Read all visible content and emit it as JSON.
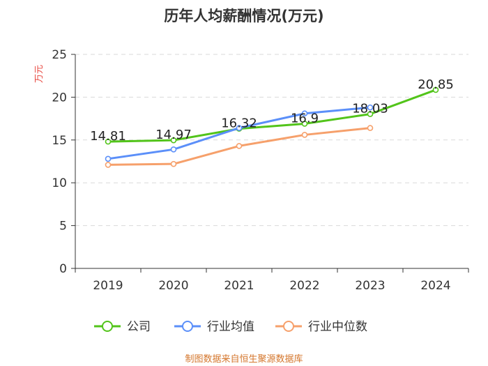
{
  "chart_data": {
    "type": "line",
    "title": "历年人均薪酬情况(万元)",
    "ylabel": "万元",
    "xlabel": "",
    "ylim": [
      0,
      25
    ],
    "yticks": [
      0,
      5,
      10,
      15,
      20,
      25
    ],
    "categories": [
      "2019",
      "2020",
      "2021",
      "2022",
      "2023",
      "2024"
    ],
    "grid": true,
    "legend_position": "bottom",
    "series": [
      {
        "name": "公司",
        "color": "#52c41a",
        "values": [
          14.81,
          14.97,
          16.32,
          16.9,
          18.03,
          20.85
        ],
        "labeled": true
      },
      {
        "name": "行业均值",
        "color": "#5b8ff9",
        "values": [
          12.8,
          13.9,
          16.4,
          18.1,
          18.8,
          null
        ],
        "labeled": false
      },
      {
        "name": "行业中位数",
        "color": "#f6a06b",
        "values": [
          12.1,
          12.2,
          14.3,
          15.6,
          16.4,
          null
        ],
        "labeled": false
      }
    ],
    "source": "制图数据来自恒生聚源数据库"
  }
}
